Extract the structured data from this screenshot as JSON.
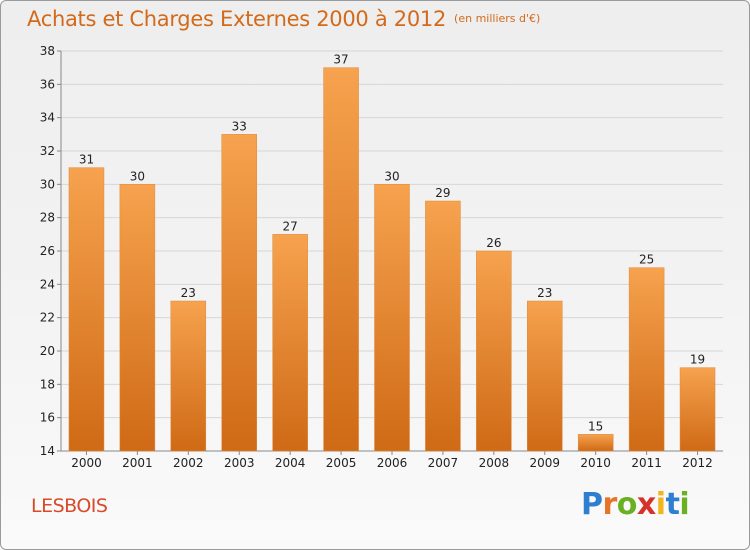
{
  "header": {
    "title": "Achats et Charges Externes 2000 à 2012",
    "unit": "(en milliers d'€)"
  },
  "footer": {
    "commune": "LESBOIS",
    "logo_letters": [
      {
        "char": "P",
        "color": "#2e7fcf"
      },
      {
        "char": "r",
        "color": "#e8742a"
      },
      {
        "char": "o",
        "color": "#6ab023"
      },
      {
        "char": "x",
        "color": "#d8302a"
      },
      {
        "char": "i",
        "color": "#f2b51b"
      },
      {
        "char": "t",
        "color": "#2e7fcf"
      },
      {
        "char": "i",
        "color": "#6ab023"
      }
    ]
  },
  "chart_data": {
    "type": "bar",
    "categories": [
      "2000",
      "2001",
      "2002",
      "2003",
      "2004",
      "2005",
      "2006",
      "2007",
      "2008",
      "2009",
      "2010",
      "2011",
      "2012"
    ],
    "values": [
      31,
      30,
      23,
      33,
      27,
      37,
      30,
      29,
      26,
      23,
      15,
      25,
      19
    ],
    "title": "Achats et Charges Externes 2000 à 2012",
    "ylim": [
      14,
      38
    ],
    "yticks": [
      14,
      16,
      18,
      20,
      22,
      24,
      26,
      28,
      30,
      32,
      34,
      36,
      38
    ],
    "grid": true,
    "bar_color_light": "#f6a24e",
    "bar_color_dark": "#cf6a16",
    "title_color": "#d36a1b"
  }
}
